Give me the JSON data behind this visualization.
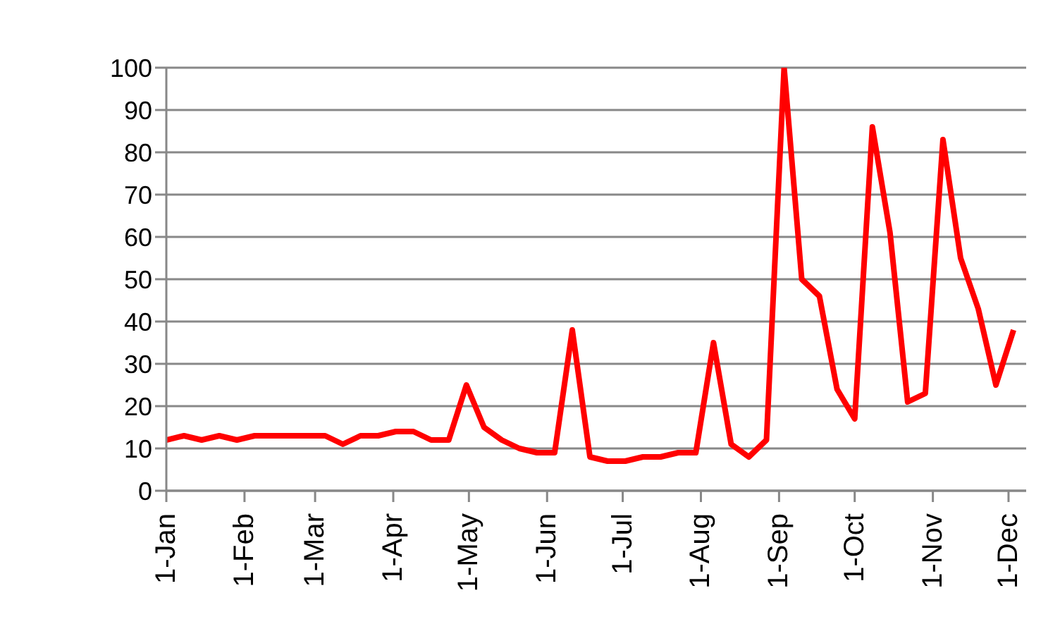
{
  "chart_data": {
    "type": "line",
    "x": [
      "--01-01",
      "--01-08",
      "--01-15",
      "--01-22",
      "--01-29",
      "--02-05",
      "--02-12",
      "--02-19",
      "--02-26",
      "--03-05",
      "--03-12",
      "--03-19",
      "--03-26",
      "--04-02",
      "--04-09",
      "--04-16",
      "--04-23",
      "--04-30",
      "--05-07",
      "--05-14",
      "--05-21",
      "--05-28",
      "--06-04",
      "--06-11",
      "--06-18",
      "--06-25",
      "--07-02",
      "--07-09",
      "--07-16",
      "--07-23",
      "--07-30",
      "--08-06",
      "--08-13",
      "--08-20",
      "--08-27",
      "--09-03",
      "--09-10",
      "--09-17",
      "--09-24",
      "--10-01",
      "--10-08",
      "--10-15",
      "--10-22",
      "--10-29",
      "--11-05",
      "--11-12",
      "--11-19",
      "--11-26",
      "--12-03"
    ],
    "series": [
      {
        "color": "#ff0000",
        "values": [
          12,
          13,
          12,
          13,
          12,
          13,
          13,
          13,
          13,
          13,
          11,
          13,
          13,
          14,
          14,
          12,
          12,
          25,
          15,
          12,
          10,
          9,
          9,
          38,
          8,
          7,
          7,
          8,
          8,
          9,
          9,
          35,
          11,
          8,
          12,
          100,
          50,
          46,
          24,
          17,
          86,
          61,
          21,
          23,
          83,
          55,
          43,
          25,
          38
        ]
      }
    ],
    "xlim": [
      "--01-01",
      "--12-08"
    ],
    "xticks": [
      {
        "value": "--01-01",
        "label": "1-Jan"
      },
      {
        "value": "--02-01",
        "label": "1-Feb"
      },
      {
        "value": "--03-01",
        "label": "1-Mar"
      },
      {
        "value": "--04-01",
        "label": "1-Apr"
      },
      {
        "value": "--05-01",
        "label": "1-May"
      },
      {
        "value": "--06-01",
        "label": "1-Jun"
      },
      {
        "value": "--07-01",
        "label": "1-Jul"
      },
      {
        "value": "--08-01",
        "label": "1-Aug"
      },
      {
        "value": "--09-01",
        "label": "1-Sep"
      },
      {
        "value": "--10-01",
        "label": "1-Oct"
      },
      {
        "value": "--11-01",
        "label": "1-Nov"
      },
      {
        "value": "--12-01",
        "label": "1-Dec"
      }
    ],
    "ylim": [
      0,
      100
    ],
    "yticks": [
      0,
      10,
      20,
      30,
      40,
      50,
      60,
      70,
      80,
      90,
      100
    ],
    "grid": "y",
    "marker": "none",
    "line_style": "solid"
  }
}
